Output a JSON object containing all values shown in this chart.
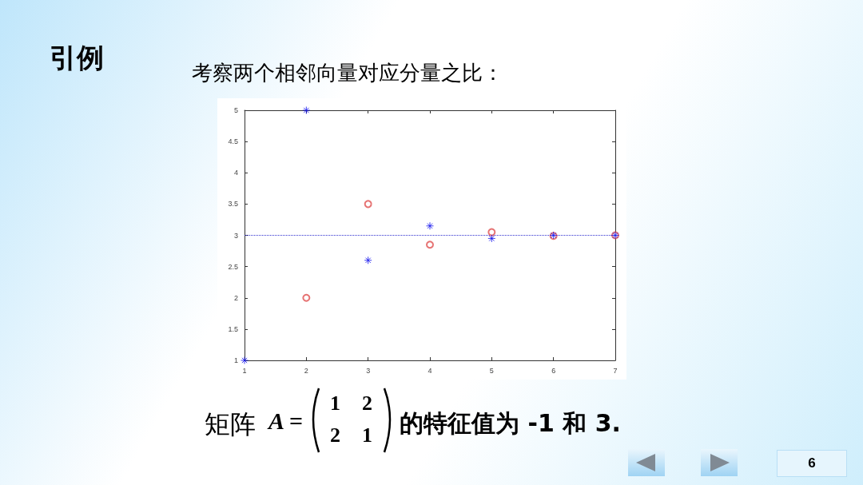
{
  "chart_data": {
    "type": "scatter",
    "title": "考察两个相邻向量对应分量之比：",
    "series": [
      {
        "color": "#1010ee",
        "marker": "cross",
        "x": [
          1,
          2,
          3,
          4,
          5,
          6,
          7
        ],
        "values": [
          1,
          5,
          2.6,
          3.15,
          2.95,
          3.0,
          3.0
        ]
      },
      {
        "color": "#e05050",
        "marker": "circle",
        "x": [
          2,
          3,
          4,
          5,
          6,
          7
        ],
        "values": [
          2,
          3.5,
          2.85,
          3.05,
          2.99,
          3.0
        ]
      }
    ],
    "xlim": [
      1,
      7
    ],
    "xticks": [
      1,
      2,
      3,
      4,
      5,
      6,
      7
    ],
    "ylim": [
      1,
      5
    ],
    "yticks": [
      1,
      1.5,
      2,
      2.5,
      3,
      3.5,
      4,
      4.5,
      5
    ],
    "grid": false,
    "ref_lines": [
      {
        "axis": "y",
        "value": 3,
        "color": "#3030d0",
        "line_style": "dotted"
      }
    ],
    "annotations": [
      "引例",
      "矩阵",
      "A",
      "=",
      "1",
      "2",
      "2",
      "1",
      "的特征值为 -1 和 3.",
      "6"
    ]
  }
}
